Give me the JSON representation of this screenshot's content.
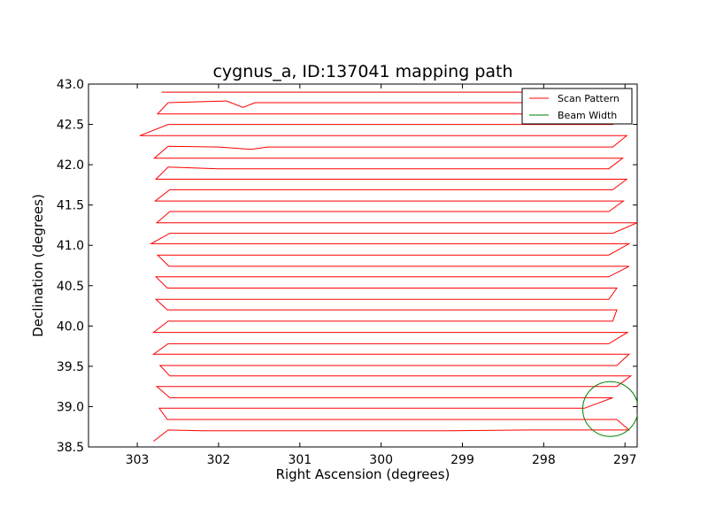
{
  "chart_data": {
    "type": "line",
    "title": "cygnus_a, ID:137041 mapping path",
    "xlabel": "Right Ascension (degrees)",
    "ylabel": "Declination (degrees)",
    "xlim": [
      303.6,
      296.85
    ],
    "ylim": [
      38.5,
      43.0
    ],
    "x_inverted": true,
    "xticks": [
      "303",
      "302",
      "301",
      "300",
      "299",
      "298",
      "297"
    ],
    "yticks": [
      "38.5",
      "39.0",
      "39.5",
      "40.0",
      "40.5",
      "41.0",
      "41.5",
      "42.0",
      "42.5",
      "43.0"
    ],
    "grid": false,
    "legend": {
      "placement": "top-right",
      "entries": [
        {
          "label": "Scan Pattern",
          "color": "#ff0000"
        },
        {
          "label": "Beam Width",
          "color": "#008000"
        }
      ]
    },
    "series": [
      {
        "name": "Scan Pattern",
        "color": "#ff0000",
        "points": [
          [
            302.8,
            38.57
          ],
          [
            302.62,
            38.71
          ],
          [
            302.2,
            38.7
          ],
          [
            301.2,
            38.7
          ],
          [
            300.2,
            38.7
          ],
          [
            299.2,
            38.7
          ],
          [
            298.2,
            38.71
          ],
          [
            297.2,
            38.71
          ],
          [
            296.95,
            38.71
          ],
          [
            297.1,
            38.84
          ],
          [
            298.0,
            38.84
          ],
          [
            299.0,
            38.84
          ],
          [
            300.0,
            38.84
          ],
          [
            301.0,
            38.84
          ],
          [
            302.0,
            38.84
          ],
          [
            302.63,
            38.84
          ],
          [
            302.73,
            38.98
          ],
          [
            302.0,
            38.98
          ],
          [
            301.0,
            38.98
          ],
          [
            300.0,
            38.98
          ],
          [
            299.0,
            38.98
          ],
          [
            298.0,
            38.98
          ],
          [
            297.5,
            38.98
          ],
          [
            297.15,
            39.11
          ],
          [
            298.0,
            39.11
          ],
          [
            299.0,
            39.11
          ],
          [
            300.0,
            39.11
          ],
          [
            301.0,
            39.11
          ],
          [
            302.0,
            39.11
          ],
          [
            302.6,
            39.11
          ],
          [
            302.76,
            39.25
          ],
          [
            302.0,
            39.25
          ],
          [
            301.0,
            39.25
          ],
          [
            300.0,
            39.25
          ],
          [
            299.0,
            39.25
          ],
          [
            298.0,
            39.25
          ],
          [
            297.1,
            39.25
          ],
          [
            296.93,
            39.38
          ],
          [
            298.0,
            39.38
          ],
          [
            299.0,
            39.38
          ],
          [
            300.0,
            39.38
          ],
          [
            301.0,
            39.38
          ],
          [
            302.0,
            39.38
          ],
          [
            302.6,
            39.38
          ],
          [
            302.72,
            39.51
          ],
          [
            302.0,
            39.51
          ],
          [
            301.0,
            39.51
          ],
          [
            300.0,
            39.51
          ],
          [
            299.0,
            39.51
          ],
          [
            298.0,
            39.51
          ],
          [
            297.1,
            39.51
          ],
          [
            296.95,
            39.65
          ],
          [
            298.0,
            39.65
          ],
          [
            299.0,
            39.65
          ],
          [
            300.0,
            39.65
          ],
          [
            301.0,
            39.65
          ],
          [
            302.0,
            39.65
          ],
          [
            302.8,
            39.65
          ],
          [
            302.62,
            39.78
          ],
          [
            302.0,
            39.78
          ],
          [
            301.0,
            39.78
          ],
          [
            300.0,
            39.78
          ],
          [
            299.0,
            39.78
          ],
          [
            298.0,
            39.78
          ],
          [
            297.2,
            39.78
          ],
          [
            296.97,
            39.92
          ],
          [
            298.0,
            39.92
          ],
          [
            299.0,
            39.92
          ],
          [
            300.0,
            39.92
          ],
          [
            301.0,
            39.92
          ],
          [
            302.0,
            39.92
          ],
          [
            302.8,
            39.92
          ],
          [
            302.62,
            40.06
          ],
          [
            302.0,
            40.06
          ],
          [
            301.0,
            40.06
          ],
          [
            300.0,
            40.06
          ],
          [
            299.0,
            40.06
          ],
          [
            298.0,
            40.06
          ],
          [
            297.15,
            40.06
          ],
          [
            297.1,
            40.2
          ],
          [
            298.0,
            40.2
          ],
          [
            299.0,
            40.2
          ],
          [
            300.0,
            40.2
          ],
          [
            301.0,
            40.2
          ],
          [
            302.0,
            40.2
          ],
          [
            302.63,
            40.2
          ],
          [
            302.77,
            40.33
          ],
          [
            302.0,
            40.33
          ],
          [
            301.0,
            40.33
          ],
          [
            300.0,
            40.33
          ],
          [
            299.0,
            40.33
          ],
          [
            298.0,
            40.33
          ],
          [
            297.2,
            40.33
          ],
          [
            297.1,
            40.47
          ],
          [
            298.0,
            40.47
          ],
          [
            299.0,
            40.47
          ],
          [
            300.0,
            40.47
          ],
          [
            301.0,
            40.47
          ],
          [
            302.0,
            40.47
          ],
          [
            302.63,
            40.47
          ],
          [
            302.77,
            40.61
          ],
          [
            302.0,
            40.61
          ],
          [
            301.0,
            40.61
          ],
          [
            300.0,
            40.61
          ],
          [
            299.0,
            40.61
          ],
          [
            298.0,
            40.61
          ],
          [
            297.2,
            40.61
          ],
          [
            296.95,
            40.74
          ],
          [
            298.0,
            40.74
          ],
          [
            299.0,
            40.74
          ],
          [
            300.0,
            40.74
          ],
          [
            301.0,
            40.74
          ],
          [
            302.0,
            40.74
          ],
          [
            302.61,
            40.74
          ],
          [
            302.75,
            40.88
          ],
          [
            302.0,
            40.88
          ],
          [
            301.0,
            40.88
          ],
          [
            300.0,
            40.88
          ],
          [
            299.0,
            40.88
          ],
          [
            298.0,
            40.88
          ],
          [
            297.2,
            40.88
          ],
          [
            296.95,
            41.02
          ],
          [
            298.0,
            41.02
          ],
          [
            299.0,
            41.02
          ],
          [
            300.0,
            41.02
          ],
          [
            301.0,
            41.02
          ],
          [
            302.0,
            41.02
          ],
          [
            302.83,
            41.02
          ],
          [
            302.6,
            41.15
          ],
          [
            302.0,
            41.15
          ],
          [
            301.0,
            41.15
          ],
          [
            300.0,
            41.15
          ],
          [
            299.0,
            41.15
          ],
          [
            298.0,
            41.15
          ],
          [
            297.15,
            41.15
          ],
          [
            296.85,
            41.28
          ],
          [
            298.0,
            41.28
          ],
          [
            299.0,
            41.28
          ],
          [
            300.0,
            41.28
          ],
          [
            301.0,
            41.28
          ],
          [
            302.0,
            41.28
          ],
          [
            302.76,
            41.28
          ],
          [
            302.6,
            41.42
          ],
          [
            302.0,
            41.42
          ],
          [
            301.0,
            41.42
          ],
          [
            300.0,
            41.42
          ],
          [
            299.0,
            41.42
          ],
          [
            298.0,
            41.42
          ],
          [
            297.2,
            41.42
          ],
          [
            297.02,
            41.55
          ],
          [
            298.0,
            41.55
          ],
          [
            299.0,
            41.55
          ],
          [
            300.0,
            41.55
          ],
          [
            301.0,
            41.55
          ],
          [
            302.0,
            41.55
          ],
          [
            302.78,
            41.55
          ],
          [
            302.6,
            41.69
          ],
          [
            302.0,
            41.69
          ],
          [
            301.0,
            41.69
          ],
          [
            300.0,
            41.69
          ],
          [
            299.0,
            41.69
          ],
          [
            298.0,
            41.69
          ],
          [
            297.15,
            41.69
          ],
          [
            296.98,
            41.82
          ],
          [
            298.0,
            41.82
          ],
          [
            299.0,
            41.82
          ],
          [
            300.0,
            41.82
          ],
          [
            301.0,
            41.82
          ],
          [
            302.0,
            41.82
          ],
          [
            302.77,
            41.82
          ],
          [
            302.62,
            41.97
          ],
          [
            302.0,
            41.95
          ],
          [
            301.0,
            41.95
          ],
          [
            300.0,
            41.95
          ],
          [
            299.0,
            41.95
          ],
          [
            298.0,
            41.95
          ],
          [
            297.2,
            41.95
          ],
          [
            297.03,
            42.08
          ],
          [
            298.0,
            42.08
          ],
          [
            299.0,
            42.08
          ],
          [
            300.0,
            42.08
          ],
          [
            301.0,
            42.08
          ],
          [
            302.0,
            42.08
          ],
          [
            302.79,
            42.08
          ],
          [
            302.62,
            42.23
          ],
          [
            302.0,
            42.22
          ],
          [
            301.6,
            42.19
          ],
          [
            301.4,
            42.22
          ],
          [
            301.0,
            42.22
          ],
          [
            300.0,
            42.22
          ],
          [
            299.0,
            42.22
          ],
          [
            298.0,
            42.22
          ],
          [
            297.15,
            42.22
          ],
          [
            296.98,
            42.36
          ],
          [
            298.0,
            42.36
          ],
          [
            299.0,
            42.36
          ],
          [
            300.0,
            42.36
          ],
          [
            301.0,
            42.36
          ],
          [
            302.0,
            42.36
          ],
          [
            302.97,
            42.36
          ],
          [
            302.62,
            42.5
          ],
          [
            302.0,
            42.5
          ],
          [
            301.0,
            42.5
          ],
          [
            300.0,
            42.5
          ],
          [
            299.0,
            42.5
          ],
          [
            298.0,
            42.5
          ],
          [
            297.15,
            42.5
          ],
          [
            297.0,
            42.63
          ],
          [
            298.0,
            42.63
          ],
          [
            299.0,
            42.63
          ],
          [
            300.0,
            42.63
          ],
          [
            301.0,
            42.63
          ],
          [
            302.0,
            42.63
          ],
          [
            302.75,
            42.63
          ],
          [
            302.62,
            42.77
          ],
          [
            301.9,
            42.79
          ],
          [
            301.7,
            42.71
          ],
          [
            301.55,
            42.77
          ],
          [
            301.0,
            42.77
          ],
          [
            300.0,
            42.77
          ],
          [
            299.0,
            42.77
          ],
          [
            298.0,
            42.77
          ],
          [
            297.15,
            42.77
          ],
          [
            297.0,
            42.9
          ],
          [
            298.0,
            42.9
          ],
          [
            299.0,
            42.9
          ],
          [
            300.0,
            42.9
          ],
          [
            301.0,
            42.9
          ],
          [
            302.0,
            42.9
          ],
          [
            302.7,
            42.9
          ]
        ]
      },
      {
        "name": "Beam Width",
        "color": "#008000",
        "circle": {
          "center_ra": 297.18,
          "center_dec": 38.97,
          "radius_deg": 0.34
        }
      }
    ]
  }
}
